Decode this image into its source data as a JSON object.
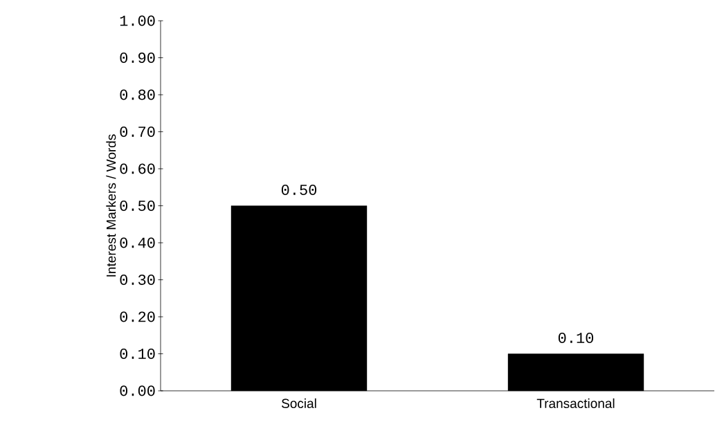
{
  "chart_data": {
    "type": "bar",
    "ylabel": "Interest Markers / Words",
    "categories": [
      "Social",
      "Transactional"
    ],
    "values": [
      0.5,
      0.1
    ],
    "value_labels": [
      "0.50",
      "0.10"
    ],
    "color": "#000000",
    "ylim": [
      0,
      1
    ],
    "yticks": [
      {
        "value": 0,
        "label": "0.00"
      },
      {
        "value": 0.1,
        "label": "0.10"
      },
      {
        "value": 0.2,
        "label": "0.20"
      },
      {
        "value": 0.3,
        "label": "0.30"
      },
      {
        "value": 0.4,
        "label": "0.40"
      },
      {
        "value": 0.5,
        "label": "0.50"
      },
      {
        "value": 0.6,
        "label": "0.60"
      },
      {
        "value": 0.7,
        "label": "0.70"
      },
      {
        "value": 0.8,
        "label": "0.80"
      },
      {
        "value": 0.9,
        "label": "0.90"
      },
      {
        "value": 1,
        "label": "1.00"
      }
    ]
  }
}
